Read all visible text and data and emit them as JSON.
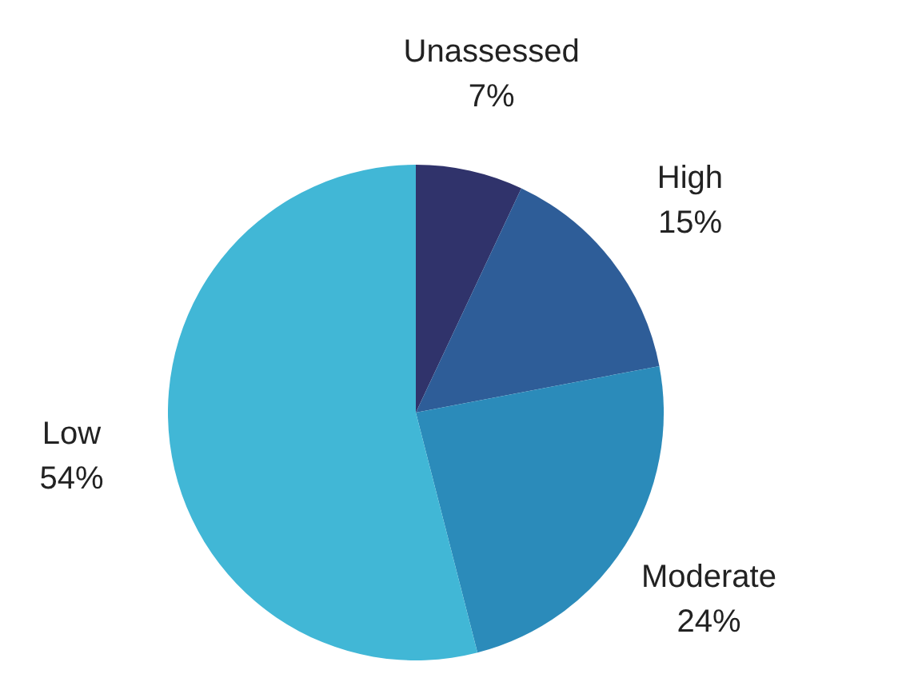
{
  "chart_data": {
    "type": "pie",
    "categories": [
      "Unassessed",
      "High",
      "Moderate",
      "Low"
    ],
    "values": [
      7,
      15,
      24,
      54
    ],
    "colors": [
      "#30336b",
      "#2e5d98",
      "#2b8bba",
      "#41b7d6"
    ],
    "value_labels": [
      "7%",
      "15%",
      "24%",
      "54%"
    ],
    "legend": false
  }
}
